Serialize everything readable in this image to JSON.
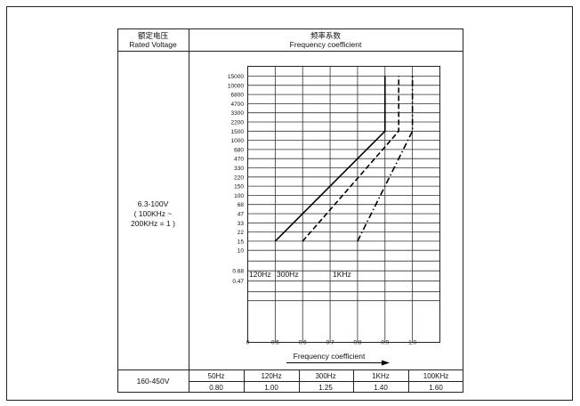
{
  "table": {
    "header_col1_line1": "额定电压",
    "header_col1_line2": "Rated Voltage",
    "header_col2_line1": "频率系数",
    "header_col2_line2": "Frequency coefficient",
    "row1_label_line1": "6.3-100V",
    "row1_label_line2": "( 100KHz ~",
    "row1_label_line3": "200KHz = 1 )",
    "row2_label": "160-450V",
    "row2_frequencies": [
      "50Hz",
      "120Hz",
      "300Hz",
      "1KHz",
      "100KHz"
    ],
    "row2_coefficients": [
      "0.80",
      "1.00",
      "1.25",
      "1.40",
      "1.60"
    ]
  },
  "chart_data": {
    "type": "line",
    "xlabel": "Frequency coefficient",
    "x_ticks": [
      "0",
      "0.5",
      "0.6",
      "0.7",
      "0.8",
      "0.9",
      "1.0"
    ],
    "y_ticks": [
      "15000",
      "10000",
      "6800",
      "4700",
      "3300",
      "2200",
      "1500",
      "1000",
      "680",
      "470",
      "330",
      "220",
      "150",
      "100",
      "68",
      "47",
      "33",
      "22",
      "15",
      "10",
      "0.68",
      "0.47"
    ],
    "series": [
      {
        "name": "120Hz",
        "style": "solid",
        "points": [
          [
            0.5,
            "15"
          ],
          [
            0.9,
            "1500"
          ],
          [
            0.9,
            "15000"
          ]
        ]
      },
      {
        "name": "300Hz",
        "style": "dashed",
        "points": [
          [
            0.6,
            "15"
          ],
          [
            0.95,
            "1500"
          ],
          [
            0.95,
            "15000"
          ]
        ]
      },
      {
        "name": "1KHz",
        "style": "dash-dot",
        "points": [
          [
            0.8,
            "15"
          ],
          [
            1.0,
            "1500"
          ],
          [
            1.0,
            "15000"
          ]
        ]
      }
    ]
  }
}
